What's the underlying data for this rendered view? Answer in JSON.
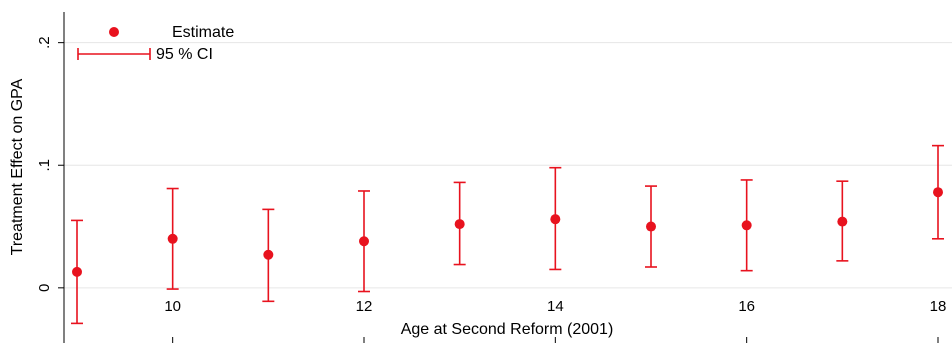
{
  "chart_data": {
    "type": "scatter",
    "xlabel": "Age at Second Reform (2001)",
    "ylabel": "Treatment Effect on GPA",
    "xlim": [
      9,
      18
    ],
    "ylim": [
      -0.045,
      0.225
    ],
    "x_ticks": [
      10,
      12,
      14,
      16,
      18
    ],
    "x_tick_labels": [
      "10",
      "12",
      "14",
      "16",
      "18"
    ],
    "y_ticks": [
      0,
      0.1,
      0.2
    ],
    "y_tick_labels": [
      "0",
      ".1",
      ".2"
    ],
    "grid": true,
    "legend_position": "top-left",
    "color": "#e8121e",
    "series": [
      {
        "name": "Estimate",
        "x": [
          9,
          10,
          11,
          12,
          13,
          14,
          15,
          16,
          17,
          18
        ],
        "y": [
          0.013,
          0.04,
          0.027,
          0.038,
          0.052,
          0.056,
          0.05,
          0.051,
          0.054,
          0.078
        ]
      },
      {
        "name": "95 % CI",
        "x": [
          9,
          10,
          11,
          12,
          13,
          14,
          15,
          16,
          17,
          18
        ],
        "lower": [
          -0.029,
          -0.001,
          -0.011,
          -0.003,
          0.019,
          0.015,
          0.017,
          0.014,
          0.022,
          0.04
        ],
        "upper": [
          0.055,
          0.081,
          0.064,
          0.079,
          0.086,
          0.098,
          0.083,
          0.088,
          0.087,
          0.116
        ]
      }
    ]
  }
}
